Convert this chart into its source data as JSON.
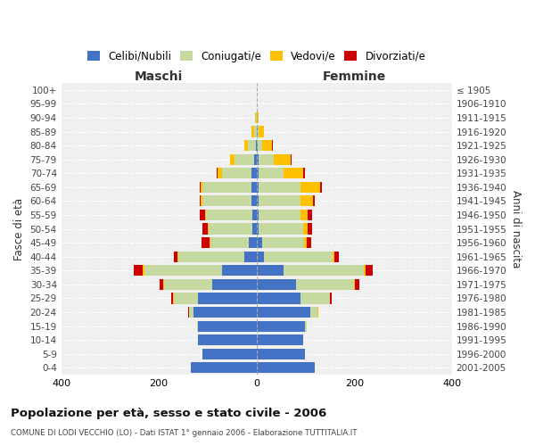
{
  "age_groups": [
    "0-4",
    "5-9",
    "10-14",
    "15-19",
    "20-24",
    "25-29",
    "30-34",
    "35-39",
    "40-44",
    "45-49",
    "50-54",
    "55-59",
    "60-64",
    "65-69",
    "70-74",
    "75-79",
    "80-84",
    "85-89",
    "90-94",
    "95-99",
    "100+"
  ],
  "birth_years": [
    "2001-2005",
    "1996-2000",
    "1991-1995",
    "1986-1990",
    "1981-1985",
    "1976-1980",
    "1971-1975",
    "1966-1970",
    "1961-1965",
    "1956-1960",
    "1951-1955",
    "1946-1950",
    "1941-1945",
    "1936-1940",
    "1931-1935",
    "1926-1930",
    "1921-1925",
    "1916-1920",
    "1911-1915",
    "1906-1910",
    "≤ 1905"
  ],
  "maschi": {
    "celibi": [
      135,
      110,
      120,
      120,
      130,
      120,
      90,
      70,
      25,
      15,
      8,
      8,
      10,
      10,
      10,
      5,
      2,
      0,
      0,
      0,
      0
    ],
    "coniugati": [
      0,
      0,
      0,
      2,
      8,
      50,
      100,
      160,
      135,
      80,
      90,
      95,
      100,
      100,
      60,
      40,
      15,
      5,
      2,
      0,
      0
    ],
    "vedovi": [
      0,
      0,
      0,
      0,
      1,
      1,
      1,
      3,
      2,
      2,
      2,
      3,
      4,
      5,
      10,
      10,
      8,
      5,
      1,
      0,
      0
    ],
    "divorziati": [
      0,
      0,
      0,
      0,
      1,
      3,
      8,
      18,
      8,
      15,
      10,
      10,
      3,
      1,
      2,
      0,
      0,
      0,
      0,
      0,
      0
    ]
  },
  "femmine": {
    "nubili": [
      120,
      100,
      95,
      100,
      110,
      90,
      80,
      55,
      15,
      12,
      5,
      5,
      5,
      5,
      5,
      5,
      2,
      2,
      0,
      0,
      0
    ],
    "coniugate": [
      0,
      0,
      0,
      3,
      15,
      60,
      120,
      165,
      140,
      85,
      90,
      85,
      85,
      85,
      50,
      30,
      10,
      2,
      1,
      0,
      0
    ],
    "vedove": [
      0,
      0,
      0,
      0,
      1,
      1,
      2,
      3,
      4,
      5,
      10,
      15,
      25,
      40,
      40,
      35,
      20,
      12,
      3,
      1,
      0
    ],
    "divorziate": [
      0,
      0,
      0,
      0,
      1,
      3,
      8,
      15,
      10,
      10,
      8,
      8,
      5,
      3,
      5,
      2,
      1,
      0,
      0,
      0,
      0
    ]
  },
  "colors": {
    "celibi": "#4472c4",
    "coniugati": "#c5d9a0",
    "vedovi": "#ffc000",
    "divorziati": "#cc0000"
  },
  "legend_labels": [
    "Celibi/Nubili",
    "Coniugati/e",
    "Vedovi/e",
    "Divorziati/e"
  ],
  "title": "Popolazione per età, sesso e stato civile - 2006",
  "subtitle": "COMUNE DI LODI VECCHIO (LO) - Dati ISTAT 1° gennaio 2006 - Elaborazione TUTTITALIA.IT",
  "ylabel_left": "Fasce di età",
  "ylabel_right": "Anni di nascita",
  "xlabel_maschi": "Maschi",
  "xlabel_femmine": "Femmine",
  "xlim": 400,
  "background_color": "#f0f0f0"
}
